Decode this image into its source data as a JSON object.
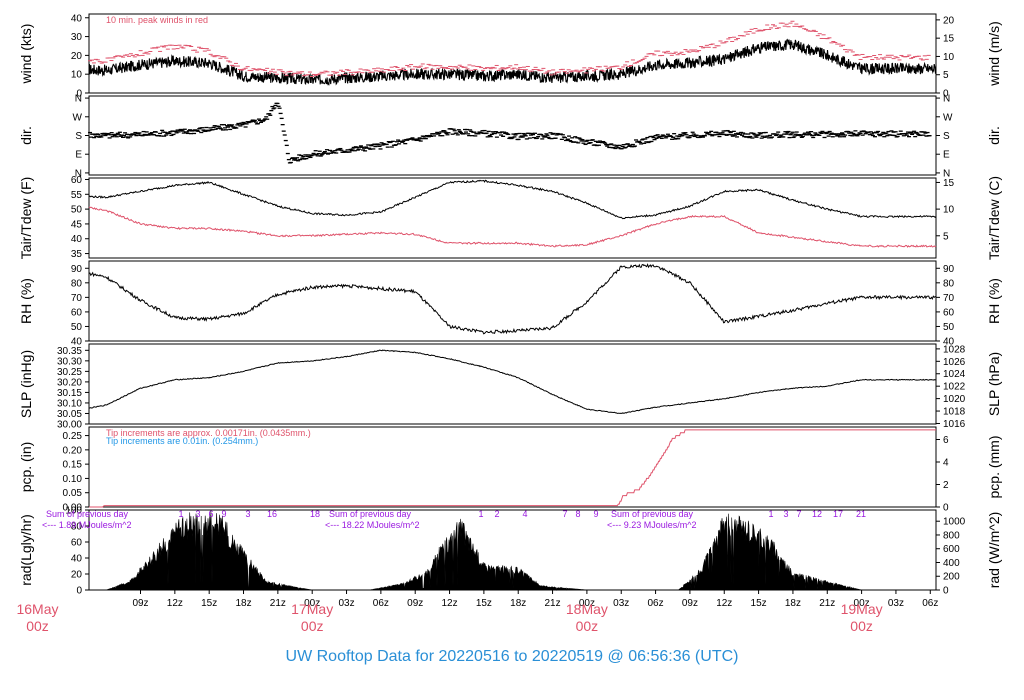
{
  "title": "UW Rooftop Data for 20220516  to  20220519 @ 06:56:36  (UTC)",
  "colors": {
    "ink": "#000000",
    "red": "#df536b",
    "blue": "#2297e6",
    "purple": "#9a19e0",
    "title": "#2a8fd6"
  },
  "chart_data": [
    {
      "type": "line",
      "panel": "wind",
      "ylabel_left": "wind (kts)",
      "ylabel_right": "wind (m/s)",
      "ylim": [
        0,
        42
      ],
      "yticks_left": [
        "0",
        "10",
        "20",
        "30",
        "40"
      ],
      "yticks_left_values": [
        0,
        10,
        20,
        30,
        40
      ],
      "yticks_right": [
        "0",
        "5",
        "10",
        "15",
        "20"
      ],
      "yticks_right_values": [
        0,
        5,
        10,
        15,
        20
      ],
      "annotation": "10 min. peak winds in red",
      "series": [
        {
          "name": "wind",
          "color": "#000000",
          "x": [
            0,
            3,
            6,
            9,
            12,
            15,
            18,
            21,
            24,
            27,
            30,
            33,
            36,
            39,
            42,
            45,
            48,
            51,
            54,
            57,
            60,
            63,
            66,
            69,
            72
          ],
          "values": [
            11,
            13,
            12,
            15,
            17,
            16,
            9,
            8,
            7,
            8,
            9,
            10,
            10,
            9,
            10,
            8,
            9,
            10,
            15,
            16,
            18,
            24,
            26,
            20,
            13
          ]
        },
        {
          "name": "10 min. peak winds",
          "color": "#df536b",
          "x": [
            0,
            3,
            6,
            9,
            12,
            15,
            18,
            21,
            24,
            27,
            30,
            33,
            36,
            39,
            42,
            45,
            48,
            51,
            54,
            57,
            60,
            63,
            66,
            69,
            72
          ],
          "values": [
            16,
            18,
            17,
            21,
            25,
            22,
            13,
            11,
            10,
            11,
            12,
            14,
            14,
            13,
            14,
            11,
            12,
            14,
            21,
            22,
            27,
            34,
            37,
            29,
            19
          ]
        }
      ]
    },
    {
      "type": "scatter",
      "panel": "dir",
      "ylabel_left": "dir.",
      "ylabel_right": "dir.",
      "yticks": [
        "N",
        "E",
        "S",
        "W",
        "N"
      ],
      "yticks_values": [
        0,
        90,
        180,
        270,
        360
      ],
      "series": [
        {
          "name": "dir",
          "color": "#000000",
          "x": [
            0,
            3,
            6,
            9,
            12,
            15,
            18,
            20,
            21,
            22,
            24,
            27,
            30,
            33,
            36,
            39,
            42,
            45,
            48,
            51,
            54,
            57,
            60,
            63,
            66,
            69,
            72
          ],
          "values": [
            185,
            190,
            180,
            185,
            195,
            210,
            230,
            260,
            350,
            60,
            90,
            110,
            130,
            160,
            200,
            190,
            175,
            180,
            150,
            125,
            170,
            180,
            190,
            180,
            185,
            185,
            188
          ]
        }
      ]
    },
    {
      "type": "line",
      "panel": "temp",
      "ylabel_left": "Tair/Tdew (F)",
      "ylabel_right": "Tair/Tdew (C)",
      "ylim": [
        33.5,
        60.5
      ],
      "yticks_left": [
        "35",
        "40",
        "45",
        "50",
        "55",
        "60"
      ],
      "yticks_left_values": [
        35,
        40,
        45,
        50,
        55,
        60
      ],
      "yticks_right": [
        "5",
        "10",
        "15"
      ],
      "yticks_right_values": [
        5,
        10,
        15
      ],
      "series": [
        {
          "name": "Tair",
          "color": "#000000",
          "x": [
            0,
            3,
            6,
            9,
            12,
            15,
            18,
            21,
            24,
            27,
            30,
            33,
            36,
            39,
            42,
            45,
            48,
            51,
            54,
            57,
            60,
            63,
            66,
            69,
            72
          ],
          "values": [
            55,
            54.5,
            54,
            56,
            58,
            59,
            55,
            51,
            48.5,
            48,
            49,
            54,
            59,
            59.5,
            58,
            56,
            52,
            47,
            48,
            51,
            56,
            56.5,
            53,
            50,
            47.5
          ]
        },
        {
          "name": "Tdew",
          "color": "#df536b",
          "x": [
            0,
            3,
            6,
            9,
            12,
            15,
            18,
            21,
            24,
            27,
            30,
            33,
            36,
            39,
            42,
            45,
            48,
            51,
            54,
            57,
            60,
            63,
            66,
            69,
            72
          ],
          "values": [
            52,
            51.5,
            49.5,
            45,
            43.5,
            43.5,
            42.5,
            41,
            41,
            41.5,
            42,
            41.5,
            38.5,
            38.5,
            38.5,
            37.5,
            38,
            41,
            45,
            47.5,
            47.5,
            42,
            40.5,
            39,
            37.5
          ]
        }
      ]
    },
    {
      "type": "line",
      "panel": "rh",
      "ylabel_left": "RH (%)",
      "ylabel_right": "RH (%)",
      "ylim": [
        40,
        95
      ],
      "yticks_left": [
        "40",
        "50",
        "60",
        "70",
        "80",
        "90"
      ],
      "yticks_left_values": [
        40,
        50,
        60,
        70,
        80,
        90
      ],
      "yticks_right": [
        "40",
        "50",
        "60",
        "70",
        "80",
        "90"
      ],
      "yticks_right_values": [
        40,
        50,
        60,
        70,
        80,
        90
      ],
      "series": [
        {
          "name": "RH",
          "color": "#000000",
          "x": [
            0,
            3,
            6,
            9,
            12,
            15,
            18,
            21,
            24,
            27,
            30,
            33,
            36,
            39,
            42,
            45,
            48,
            51,
            54,
            57,
            60,
            63,
            66,
            69,
            72
          ],
          "values": [
            90,
            89,
            84,
            68,
            56,
            55,
            59,
            72,
            77,
            78,
            76,
            74,
            50,
            46,
            47,
            49,
            67,
            91,
            92,
            80,
            53,
            57,
            61,
            66,
            70
          ]
        }
      ]
    },
    {
      "type": "line",
      "panel": "slp",
      "ylabel_left": "SLP (inHg)",
      "ylabel_right": "SLP (hPa)",
      "ylim": [
        30.0,
        30.38
      ],
      "yticks_left": [
        "30.00",
        "30.05",
        "30.10",
        "30.15",
        "30.20",
        "30.25",
        "30.30",
        "30.35"
      ],
      "yticks_left_values": [
        30.0,
        30.05,
        30.1,
        30.15,
        30.2,
        30.25,
        30.3,
        30.35
      ],
      "yticks_right": [
        "1016",
        "1018",
        "1020",
        "1022",
        "1024",
        "1026",
        "1028"
      ],
      "yticks_right_values": [
        1016,
        1018,
        1020,
        1022,
        1024,
        1026,
        1028
      ],
      "series": [
        {
          "name": "SLP",
          "color": "#000000",
          "x": [
            0,
            3,
            6,
            9,
            12,
            15,
            18,
            21,
            24,
            27,
            30,
            33,
            36,
            39,
            42,
            45,
            48,
            51,
            54,
            57,
            60,
            63,
            66,
            69,
            72
          ],
          "values": [
            30.01,
            30.06,
            30.09,
            30.17,
            30.21,
            30.22,
            30.25,
            30.29,
            30.3,
            30.32,
            30.35,
            30.34,
            30.31,
            30.27,
            30.22,
            30.14,
            30.07,
            30.05,
            30.08,
            30.1,
            30.12,
            30.15,
            30.17,
            30.18,
            30.21
          ]
        }
      ]
    },
    {
      "type": "line",
      "panel": "pcp",
      "ylabel_left": "pcp. (in)",
      "ylabel_right": "pcp. (mm)",
      "ylim": [
        0,
        0.28
      ],
      "yticks_left": [
        "0.00",
        "0.05",
        "0.10",
        "0.15",
        "0.20",
        "0.25"
      ],
      "yticks_left_values": [
        0,
        0.05,
        0.1,
        0.15,
        0.2,
        0.25
      ],
      "yticks_right": [
        "0",
        "2",
        "4",
        "6"
      ],
      "yticks_right_values": [
        0,
        2,
        4,
        6
      ],
      "annotation_1": "Tip increments are approx. 0.00171in. (0.0435mm.)",
      "annotation_2": "Tip increments are 0.01in. (0.254mm.)",
      "series": [
        {
          "name": "pcp",
          "color": "#df536b",
          "x": [
            0,
            5.7,
            5.8,
            50.7,
            51.2,
            52.5,
            53.5,
            54.5,
            55.5,
            56.7,
            72
          ],
          "values": [
            0,
            0,
            0.005,
            0.005,
            0.04,
            0.06,
            0.11,
            0.17,
            0.24,
            0.27,
            0.27
          ]
        }
      ]
    },
    {
      "type": "area",
      "panel": "rad",
      "ylabel_left": "rad(Lgly/hr)",
      "ylabel_right": "rad (W/m^2)",
      "ylim": [
        0,
        100
      ],
      "yticks_left": [
        "0",
        "20",
        "40",
        "60",
        "80",
        "100"
      ],
      "yticks_left_values": [
        0,
        20,
        40,
        60,
        80,
        100
      ],
      "yticks_right": [
        "0",
        "200",
        "400",
        "600",
        "800",
        "1000",
        "1200"
      ],
      "yticks_right_values": [
        0,
        200,
        400,
        600,
        800,
        1000,
        1200
      ],
      "days": [
        {
          "sum_label": "Sum of previous day",
          "sum_value": "<--- 1.89 MJoules/m^2",
          "hours": [
            "1",
            "3",
            "6",
            "9",
            "3",
            "16"
          ]
        },
        {
          "sum_label": "Sum of previous day",
          "sum_value": "<--- 18.22 MJoules/m^2",
          "hours": [
            "18",
            "1",
            "2",
            "4",
            "7",
            "8",
            "9"
          ]
        },
        {
          "sum_label": "Sum of previous day",
          "sum_value": "<--- 9.23 MJoules/m^2",
          "hours": [
            "1",
            "3",
            "7",
            "12",
            "17",
            "21"
          ]
        }
      ],
      "series": [
        {
          "name": "rad",
          "color": "#000000",
          "x": [
            0,
            5,
            6,
            8,
            10,
            12,
            14,
            16,
            18,
            20,
            24,
            29,
            32,
            34,
            35,
            37,
            39,
            42,
            44,
            48,
            53,
            56,
            58,
            60,
            62,
            64,
            66,
            72
          ],
          "values": [
            0,
            0,
            0,
            10,
            40,
            75,
            90,
            85,
            45,
            10,
            0,
            0,
            8,
            22,
            45,
            80,
            30,
            25,
            5,
            0,
            0,
            0,
            25,
            85,
            80,
            60,
            20,
            0
          ]
        }
      ]
    }
  ],
  "xaxis": {
    "ticks": [
      "09z",
      "12z",
      "15z",
      "18z",
      "21z",
      "00z",
      "03z",
      "06z",
      "09z",
      "12z",
      "15z",
      "18z",
      "21z",
      "00z",
      "03z",
      "06z",
      "09z",
      "12z",
      "15z",
      "18z",
      "21z",
      "00z",
      "03z",
      "06z"
    ],
    "date_labels": [
      {
        "month": "16May",
        "hour": "00z"
      },
      {
        "month": "17May",
        "hour": "00z"
      },
      {
        "month": "18May",
        "hour": "00z"
      },
      {
        "month": "19May",
        "hour": "00z"
      }
    ]
  }
}
